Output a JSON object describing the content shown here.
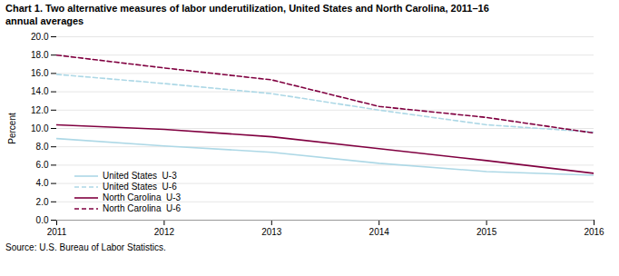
{
  "chart_data": {
    "type": "line",
    "title": "Chart 1. Two alternative measures of labor underutilization, United States and North Carolina, 2011–16",
    "subtitle": "annual averages",
    "caption": "Source: U.S. Bureau of Labor Statistics.",
    "ylabel": "Percent",
    "x": [
      2011,
      2012,
      2013,
      2014,
      2015,
      2016
    ],
    "series": [
      {
        "name": "United States  U-3",
        "color": "#add8e6",
        "line_style": "solid",
        "values": [
          8.9,
          8.1,
          7.4,
          6.2,
          5.3,
          4.9
        ]
      },
      {
        "name": "United States  U-6",
        "color": "#add8e6",
        "line_style": "dashed",
        "values": [
          15.9,
          14.9,
          13.8,
          12.0,
          10.4,
          9.6
        ]
      },
      {
        "name": "North Carolina  U-3",
        "color": "#800040",
        "line_style": "solid",
        "values": [
          10.4,
          9.9,
          9.1,
          7.8,
          6.5,
          5.1
        ]
      },
      {
        "name": "North Carolina  U-6",
        "color": "#800040",
        "line_style": "dashed",
        "values": [
          18.0,
          16.6,
          15.3,
          12.4,
          11.2,
          9.5
        ]
      }
    ],
    "xlim": [
      2011,
      2016
    ],
    "xticks": [
      2011,
      2012,
      2013,
      2014,
      2015,
      2016
    ],
    "ylim": [
      0,
      20
    ],
    "yticks": [
      {
        "value": 0,
        "label": "0.0"
      },
      {
        "value": 2,
        "label": "2.0"
      },
      {
        "value": 4,
        "label": "4.0"
      },
      {
        "value": 6,
        "label": "6.0"
      },
      {
        "value": 8,
        "label": "8.0"
      },
      {
        "value": 10,
        "label": "10.0"
      },
      {
        "value": 12,
        "label": "12.0"
      },
      {
        "value": 14,
        "label": "14.0"
      },
      {
        "value": 16,
        "label": "16.0"
      },
      {
        "value": 18,
        "label": "18.0"
      },
      {
        "value": 20,
        "label": "20.0"
      }
    ],
    "grid": true,
    "legend": "lower left"
  }
}
